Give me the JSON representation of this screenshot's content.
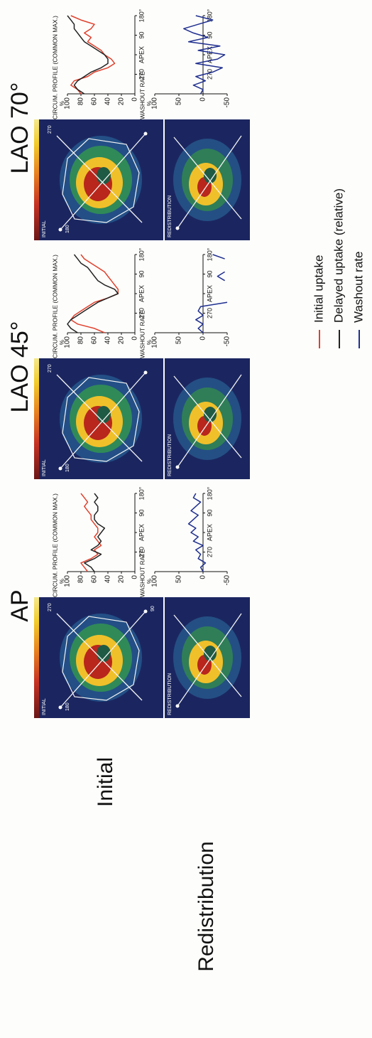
{
  "row_labels": [
    "Initial",
    "Redistribution"
  ],
  "panels": [
    {
      "title": "AP",
      "initial_label": "INITIAL",
      "redistribution_label": "REDISTRIBUTION",
      "angle_labels": [
        "180",
        "270",
        "90"
      ]
    },
    {
      "title": "LAO 45°",
      "initial_label": "INITIAL",
      "redistribution_label": "REDISTRIBUTION",
      "angle_labels": [
        "180",
        "270"
      ]
    },
    {
      "title": "LAO 70°",
      "initial_label": "INITIAL",
      "redistribution_label": "REDISTRIBUTION",
      "angle_labels": [
        "180",
        "270"
      ]
    }
  ],
  "chart_data": [
    {
      "type": "line",
      "title": "CIRCUM. PROFILE (COMMON MAX.)",
      "y_unit": "%",
      "x": [
        180,
        200,
        220,
        240,
        260,
        280,
        300,
        320,
        340,
        360,
        380,
        400,
        420,
        440,
        460,
        480,
        500,
        520,
        540
      ],
      "xlim": [
        180,
        540
      ],
      "xticks": [
        270,
        {
          "value": 360,
          "label": "APEX"
        },
        {
          "value": 450,
          "label": "90"
        },
        {
          "value": 540,
          "label": "180°"
        }
      ],
      "ylim": [
        0,
        100
      ],
      "yticks": [
        0,
        20,
        40,
        60,
        80,
        100
      ],
      "series": [
        {
          "name": "Initial uptake",
          "color": "#e0402c",
          "values": [
            70,
            75,
            80,
            65,
            55,
            60,
            50,
            55,
            60,
            55,
            55,
            60,
            65,
            65,
            70,
            75,
            70,
            75,
            80
          ]
        },
        {
          "name": "Delayed uptake (relative)",
          "color": "#222222",
          "values": [
            60,
            65,
            75,
            60,
            50,
            65,
            55,
            50,
            55,
            50,
            45,
            55,
            60,
            60,
            55,
            55,
            60,
            55,
            60
          ]
        }
      ]
    },
    {
      "type": "line",
      "title": "WASHOUT RATE",
      "y_unit": "%",
      "x": [
        180,
        200,
        220,
        240,
        260,
        280,
        300,
        320,
        340,
        360,
        380,
        400,
        420,
        440,
        460,
        480,
        500,
        520,
        540
      ],
      "xlim": [
        180,
        540
      ],
      "xticks": [
        270,
        {
          "value": 360,
          "label": "APEX"
        },
        {
          "value": 450,
          "label": "90"
        },
        {
          "value": 540,
          "label": "180°"
        }
      ],
      "ylim": [
        -50,
        100
      ],
      "yticks": [
        -50,
        0,
        50,
        100
      ],
      "series": [
        {
          "name": "Washout rate",
          "color": "#1f2f8f",
          "values": [
            0,
            5,
            -5,
            10,
            5,
            15,
            0,
            20,
            10,
            25,
            15,
            30,
            20,
            10,
            25,
            15,
            5,
            20,
            15
          ]
        }
      ]
    },
    {
      "type": "line",
      "title": "CIRCUM. PROFILE (COMMON MAX.)",
      "y_unit": "%",
      "x": [
        180,
        200,
        220,
        240,
        260,
        280,
        300,
        320,
        340,
        360,
        380,
        400,
        420,
        440,
        460,
        480,
        500,
        520,
        540
      ],
      "xlim": [
        180,
        540
      ],
      "xticks": [
        270,
        {
          "value": 360,
          "label": "APEX"
        },
        {
          "value": 450,
          "label": "90"
        },
        {
          "value": 540,
          "label": "180°"
        }
      ],
      "ylim": [
        0,
        100
      ],
      "yticks": [
        0,
        20,
        40,
        60,
        80,
        100
      ],
      "series": [
        {
          "color": "#e0402c",
          "values": [
            45,
            60,
            85,
            95,
            90,
            80,
            70,
            60,
            40,
            25,
            25,
            30,
            35,
            40,
            45,
            55,
            65,
            75,
            80
          ]
        },
        {
          "color": "#222222",
          "values": [
            85,
            95,
            100,
            95,
            85,
            75,
            65,
            55,
            40,
            25,
            30,
            45,
            55,
            60,
            65,
            70,
            80,
            85,
            90
          ]
        }
      ]
    },
    {
      "type": "line",
      "title": "WASHOUT RATE",
      "y_unit": "%",
      "x": [
        180,
        200,
        220,
        240,
        260,
        280,
        300,
        320,
        340,
        360,
        380,
        400,
        420,
        440,
        460,
        480,
        500,
        520,
        540
      ],
      "xlim": [
        180,
        540
      ],
      "xticks": [
        270,
        {
          "value": 360,
          "label": "APEX"
        },
        {
          "value": 450,
          "label": "90"
        },
        {
          "value": 540,
          "label": "180°"
        }
      ],
      "ylim": [
        -50,
        100
      ],
      "yticks": [
        -50,
        0,
        50,
        100
      ],
      "series": [
        {
          "color": "#1f2f8f",
          "values": [
            0,
            10,
            0,
            15,
            0,
            10,
            5,
            -50,
            null,
            null,
            null,
            null,
            -45,
            -30,
            -45,
            null,
            null,
            -45,
            -20
          ]
        }
      ]
    },
    {
      "type": "line",
      "title": "CIRCUM. PROFILE (COMMON MAX.)",
      "y_unit": "%",
      "x": [
        180,
        200,
        220,
        240,
        260,
        280,
        300,
        320,
        340,
        360,
        380,
        400,
        420,
        440,
        460,
        480,
        500,
        520,
        540
      ],
      "xlim": [
        180,
        540
      ],
      "xticks": [
        270,
        {
          "value": 360,
          "label": "APEX"
        },
        {
          "value": 450,
          "label": "90"
        },
        {
          "value": 540,
          "label": "180°"
        }
      ],
      "ylim": [
        0,
        100
      ],
      "yticks": [
        0,
        20,
        40,
        60,
        80,
        100
      ],
      "series": [
        {
          "color": "#e0402c",
          "values": [
            80,
            85,
            95,
            90,
            70,
            60,
            40,
            30,
            35,
            45,
            50,
            60,
            70,
            65,
            75,
            65,
            60,
            80,
            95
          ]
        },
        {
          "color": "#222222",
          "values": [
            75,
            85,
            90,
            85,
            75,
            65,
            50,
            40,
            40,
            45,
            55,
            65,
            75,
            80,
            85,
            90,
            90,
            95,
            100
          ]
        }
      ]
    },
    {
      "type": "line",
      "title": "WASHOUT RATE",
      "y_unit": "%",
      "x": [
        180,
        200,
        220,
        240,
        260,
        280,
        300,
        320,
        340,
        360,
        380,
        400,
        420,
        440,
        460,
        480,
        500,
        520,
        540
      ],
      "xlim": [
        180,
        540
      ],
      "xticks": [
        270,
        {
          "value": 360,
          "label": "APEX"
        },
        {
          "value": 450,
          "label": "90"
        },
        {
          "value": 540,
          "label": "180°"
        }
      ],
      "ylim": [
        -50,
        100
      ],
      "yticks": [
        -50,
        0,
        50,
        100
      ],
      "series": [
        {
          "color": "#1f2f8f",
          "values": [
            5,
            0,
            20,
            -5,
            15,
            -20,
            -40,
            15,
            -30,
            -45,
            10,
            -35,
            30,
            -10,
            20,
            40,
            10,
            -20,
            15
          ]
        }
      ]
    }
  ]
}
